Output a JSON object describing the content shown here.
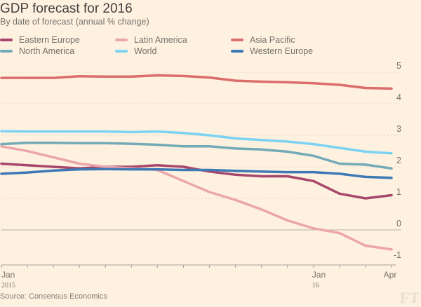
{
  "header": {
    "title": "GDP forecast for 2016",
    "subtitle": "By date of forecast (annual % change)"
  },
  "footer": {
    "source": "Source: Consensus Economics",
    "logo": "FT"
  },
  "chart_data": {
    "type": "line",
    "title": "GDP forecast for 2016",
    "subtitle": "By date of forecast (annual % change)",
    "xlabel": "",
    "ylabel": "",
    "x": [
      "Jan 2015",
      "Feb 2015",
      "Mar 2015",
      "Apr 2015",
      "May 2015",
      "Jun 2015",
      "Jul 2015",
      "Aug 2015",
      "Sep 2015",
      "Oct 2015",
      "Nov 2015",
      "Dec 2015",
      "Jan 2016",
      "Feb 2016",
      "Mar 2016",
      "Apr 2016"
    ],
    "x_tick_labels": [
      {
        "index": 0,
        "label": "Jan",
        "sublabel": "2015"
      },
      {
        "index": 12,
        "label": "Jan",
        "sublabel": "16"
      },
      {
        "index": 15,
        "label": "Apr",
        "sublabel": ""
      }
    ],
    "ylim": [
      -1,
      5
    ],
    "y_ticks": [
      "5",
      "4",
      "3",
      "2",
      "1",
      "0",
      "-1"
    ],
    "y_tick_values": [
      5,
      4,
      3,
      2,
      1,
      0,
      -1
    ],
    "grid": true,
    "legend_position": "top-left",
    "series": [
      {
        "name": "Eastern Europe",
        "color": "#a7476c",
        "values": [
          2.1,
          2.05,
          2.0,
          1.95,
          2.0,
          2.0,
          2.05,
          2.0,
          1.85,
          1.75,
          1.7,
          1.7,
          1.55,
          1.15,
          1.0,
          1.1
        ]
      },
      {
        "name": "Latin America",
        "color": "#eba6ab",
        "values": [
          2.65,
          2.5,
          2.3,
          2.1,
          2.0,
          1.95,
          1.9,
          1.55,
          1.2,
          0.95,
          0.65,
          0.3,
          0.05,
          -0.1,
          -0.5,
          -0.62
        ]
      },
      {
        "name": "Asia Pacific",
        "color": "#db6d6c",
        "values": [
          4.82,
          4.82,
          4.82,
          4.87,
          4.86,
          4.86,
          4.9,
          4.88,
          4.83,
          4.73,
          4.7,
          4.68,
          4.65,
          4.6,
          4.5,
          4.48
        ]
      },
      {
        "name": "North America",
        "color": "#73aab7",
        "values": [
          2.72,
          2.76,
          2.76,
          2.75,
          2.75,
          2.73,
          2.7,
          2.65,
          2.65,
          2.58,
          2.55,
          2.48,
          2.35,
          2.1,
          2.07,
          1.95
        ]
      },
      {
        "name": "World",
        "color": "#7bd2f2",
        "values": [
          3.13,
          3.12,
          3.12,
          3.12,
          3.12,
          3.1,
          3.12,
          3.07,
          3.0,
          2.9,
          2.85,
          2.8,
          2.72,
          2.6,
          2.48,
          2.43
        ]
      },
      {
        "name": "Western Europe",
        "color": "#3d79b5",
        "values": [
          1.78,
          1.82,
          1.88,
          1.92,
          1.93,
          1.92,
          1.92,
          1.9,
          1.9,
          1.87,
          1.85,
          1.83,
          1.83,
          1.78,
          1.68,
          1.65
        ]
      }
    ]
  }
}
